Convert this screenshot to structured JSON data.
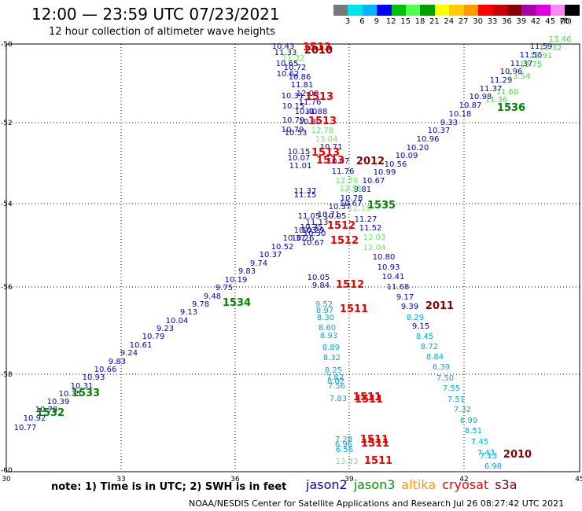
{
  "title": "12:00 — 23:59 UTC 07/23/2021",
  "subtitle": "12 hour collection of altimeter wave heights",
  "color_scale": {
    "unit": "(ft)",
    "colors": [
      "#777777",
      "#00e5e5",
      "#00b7ff",
      "#0000ff",
      "#00c000",
      "#50ff50",
      "#00a000",
      "#ffff00",
      "#ffcc00",
      "#ff9900",
      "#ff0000",
      "#cc0000",
      "#880000",
      "#aa00aa",
      "#e000e0",
      "#ff88ff",
      "#000000"
    ],
    "labels": [
      "3",
      "6",
      "9",
      "12",
      "15",
      "18",
      "21",
      "24",
      "27",
      "30",
      "33",
      "36",
      "39",
      "42",
      "45",
      "70"
    ]
  },
  "axes": {
    "lon_ticks": [
      "30",
      "33",
      "36",
      "39",
      "42",
      "45"
    ],
    "lat_ticks": [
      "-50",
      "-52",
      "-54",
      "-56",
      "-58",
      "-60"
    ]
  },
  "note": "note: 1) Time is in UTC; 2) SWH is in feet",
  "legend": [
    {
      "name": "jason2",
      "color": "#0000cc"
    },
    {
      "name": "jason3",
      "color": "#009900"
    },
    {
      "name": "altika",
      "color": "#ff9900"
    },
    {
      "name": "cryosat",
      "color": "#ee0000"
    },
    {
      "name": "s3a",
      "color": "#880000"
    }
  ],
  "footer": "NOAA/NESDIS Center for Satellite Applications and Research    Jul 26 08:27:42 UTC 2021",
  "tracks": [
    {
      "name": "blue-rising",
      "color": "#0000cc",
      "points": [
        [
          32,
          547,
          "10.77"
        ],
        [
          44,
          535,
          "10.92"
        ],
        [
          59,
          524,
          "10.78"
        ],
        [
          74,
          514,
          "10.39"
        ],
        [
          89,
          504,
          "10.35"
        ],
        [
          104,
          494,
          "10.31"
        ],
        [
          119,
          483,
          "10.93"
        ],
        [
          134,
          473,
          "10.66"
        ],
        [
          149,
          463,
          "9.83"
        ],
        [
          164,
          452,
          "9.24"
        ],
        [
          179,
          442,
          "10.61"
        ],
        [
          195,
          431,
          "10.79"
        ],
        [
          210,
          421,
          "9.23"
        ],
        [
          225,
          411,
          "10.04"
        ],
        [
          240,
          400,
          "9.13"
        ],
        [
          255,
          390,
          "9.78"
        ],
        [
          270,
          380,
          "9.48"
        ],
        [
          285,
          369,
          "9.75"
        ],
        [
          300,
          359,
          "10.19"
        ],
        [
          314,
          348,
          "9.83"
        ],
        [
          329,
          338,
          "9.74"
        ],
        [
          344,
          327,
          "10.37"
        ],
        [
          359,
          317,
          "10.52"
        ],
        [
          374,
          306,
          "10.37"
        ],
        [
          388,
          296,
          "10.03"
        ],
        [
          403,
          286,
          "11.13"
        ],
        [
          418,
          276,
          "10.71"
        ],
        [
          432,
          266,
          "10.37"
        ],
        [
          447,
          255,
          "10.78"
        ],
        [
          461,
          244,
          "9.81"
        ],
        [
          475,
          233,
          "10.67"
        ],
        [
          489,
          222,
          "10.99"
        ],
        [
          503,
          212,
          "10.56"
        ],
        [
          517,
          201,
          "10.09"
        ],
        [
          531,
          191,
          "10.20"
        ],
        [
          544,
          180,
          "10.96"
        ],
        [
          558,
          169,
          "10.37"
        ],
        [
          571,
          159,
          "9.33"
        ],
        [
          585,
          148,
          "10.18"
        ],
        [
          598,
          137,
          "10.87"
        ],
        [
          611,
          126,
          "10.98"
        ],
        [
          624,
          116,
          "11.37"
        ],
        [
          637,
          105,
          "11.29"
        ],
        [
          650,
          94,
          "10.96"
        ],
        [
          663,
          84,
          "11.37"
        ],
        [
          675,
          73,
          "11.56"
        ],
        [
          688,
          62,
          "11.59"
        ]
      ]
    },
    {
      "name": "green-rising",
      "color": "#44dd44",
      "points": [
        [
          631,
          130,
          "11.36"
        ],
        [
          645,
          120,
          "11.60"
        ],
        [
          660,
          100,
          "13.54"
        ],
        [
          675,
          85,
          "13.75"
        ],
        [
          688,
          74,
          "12.91"
        ],
        [
          700,
          64,
          "13.32"
        ],
        [
          712,
          53,
          "13.46"
        ]
      ]
    },
    {
      "name": "blue-falling",
      "color": "#0000cc",
      "points": [
        [
          360,
          62,
          "10.43"
        ],
        [
          363,
          70,
          "11.33"
        ],
        [
          365,
          84,
          "10.65"
        ],
        [
          375,
          89,
          "10.72"
        ],
        [
          366,
          97,
          "10.62"
        ],
        [
          381,
          101,
          "10.86"
        ],
        [
          384,
          111,
          "11.81"
        ],
        [
          391,
          122,
          "12.00"
        ],
        [
          372,
          125,
          "10.31"
        ],
        [
          394,
          133,
          "11.76"
        ],
        [
          373,
          138,
          "10.15"
        ],
        [
          389,
          145,
          "10.40"
        ],
        [
          402,
          145,
          "11.88"
        ],
        [
          373,
          156,
          "10.79"
        ],
        [
          394,
          158,
          "10.80"
        ],
        [
          372,
          168,
          "10.79"
        ],
        [
          376,
          172,
          "10.53"
        ],
        [
          421,
          190,
          "10.71"
        ],
        [
          380,
          196,
          "10.15"
        ],
        [
          380,
          204,
          "10.07"
        ],
        [
          430,
          208,
          "10.07"
        ],
        [
          382,
          214,
          "11.01"
        ],
        [
          436,
          221,
          "11.76"
        ],
        [
          388,
          246,
          "11.37"
        ],
        [
          388,
          251,
          "11.15"
        ],
        [
          446,
          262,
          "10.67"
        ],
        [
          426,
          278,
          "10.05"
        ],
        [
          465,
          282,
          "11.27"
        ],
        [
          393,
          278,
          "11.05"
        ],
        [
          471,
          293,
          "11.52"
        ],
        [
          396,
          292,
          "10.35"
        ],
        [
          398,
          296,
          "10.29"
        ],
        [
          400,
          300,
          "10.30"
        ],
        [
          385,
          306,
          "10.26"
        ],
        [
          398,
          312,
          "10.67"
        ],
        [
          488,
          330,
          "10.80"
        ],
        [
          494,
          343,
          "10.93"
        ],
        [
          500,
          355,
          "10.41"
        ],
        [
          405,
          356,
          "10.05"
        ],
        [
          408,
          366,
          "9.84"
        ],
        [
          506,
          368,
          "11.68"
        ],
        [
          515,
          381,
          "9.17"
        ],
        [
          521,
          393,
          "9.39"
        ],
        [
          535,
          418,
          "9.15"
        ]
      ]
    },
    {
      "name": "cyan-falling-left",
      "color": "#00aadd",
      "points": [
        [
          412,
          390,
          "9.52"
        ],
        [
          413,
          398,
          "8.97"
        ],
        [
          414,
          407,
          "8.30"
        ],
        [
          416,
          420,
          "8.60"
        ],
        [
          418,
          430,
          "8.93"
        ],
        [
          421,
          445,
          "8.89"
        ],
        [
          422,
          458,
          "8.32"
        ],
        [
          424,
          474,
          "8.25"
        ],
        [
          426,
          483,
          "7.82"
        ],
        [
          427,
          488,
          "8.02"
        ],
        [
          428,
          494,
          "7.56"
        ],
        [
          430,
          510,
          "7.83"
        ],
        [
          437,
          562,
          "7.28"
        ],
        [
          437,
          568,
          "6.96"
        ],
        [
          438,
          575,
          "6.56"
        ]
      ]
    },
    {
      "name": "cyan-falling-right",
      "color": "#00aadd",
      "points": [
        [
          528,
          407,
          "8.29"
        ],
        [
          540,
          431,
          "8.45"
        ],
        [
          546,
          444,
          "8.72"
        ],
        [
          553,
          457,
          "8.84"
        ],
        [
          561,
          470,
          "6.39"
        ],
        [
          566,
          484,
          "7.50"
        ],
        [
          574,
          497,
          "7.55"
        ],
        [
          580,
          511,
          "7.51"
        ],
        [
          588,
          524,
          "7.32"
        ],
        [
          596,
          538,
          "6.99"
        ],
        [
          602,
          551,
          "8.51"
        ],
        [
          610,
          565,
          "7.45"
        ],
        [
          618,
          579,
          "7.43"
        ],
        [
          621,
          583,
          "7.13"
        ],
        [
          627,
          596,
          "6.98"
        ]
      ]
    },
    {
      "name": "lightgreen-falling",
      "color": "#66ee66",
      "points": [
        [
          373,
          77,
          "11.32"
        ],
        [
          410,
          169,
          "12.78"
        ],
        [
          415,
          180,
          "13.04"
        ],
        [
          441,
          233,
          "12.76"
        ],
        [
          446,
          243,
          "12.55"
        ],
        [
          457,
          268,
          "12.19"
        ],
        [
          476,
          305,
          "12.03"
        ],
        [
          476,
          318,
          "12.04"
        ],
        [
          441,
          590,
          "13.33"
        ]
      ]
    },
    {
      "name": "darkred-labels",
      "color": "#880000",
      "points": [
        [
          405,
          68,
          "2010"
        ],
        [
          471,
          209,
          "2012"
        ],
        [
          559,
          393,
          "2011"
        ],
        [
          658,
          582,
          "2010"
        ]
      ]
    },
    {
      "name": "red-labels",
      "color": "#ee0000",
      "points": [
        [
          403,
          64,
          "1513"
        ],
        [
          406,
          127,
          "1513"
        ],
        [
          410,
          158,
          "1513"
        ],
        [
          414,
          198,
          "1513"
        ],
        [
          420,
          208,
          "1513"
        ],
        [
          434,
          291,
          "1512"
        ],
        [
          438,
          310,
          "1512"
        ],
        [
          445,
          366,
          "1512"
        ],
        [
          450,
          397,
          "1511"
        ],
        [
          467,
          509,
          "1511"
        ],
        [
          469,
          512,
          "1511"
        ],
        [
          476,
          563,
          "1511"
        ],
        [
          477,
          568,
          "1511"
        ],
        [
          481,
          590,
          "1511"
        ]
      ]
    },
    {
      "name": "green-labels",
      "color": "#008800",
      "points": [
        [
          650,
          141,
          "1536"
        ],
        [
          485,
          265,
          "1535"
        ],
        [
          301,
          389,
          "1534"
        ],
        [
          109,
          504,
          "1533"
        ],
        [
          64,
          529,
          "1532"
        ]
      ]
    }
  ]
}
